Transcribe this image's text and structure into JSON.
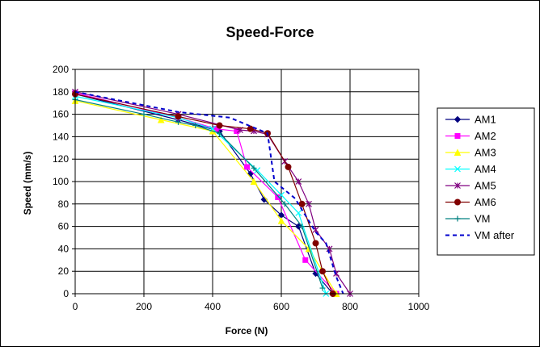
{
  "chart_data": {
    "type": "line",
    "title": "Speed-Force",
    "xlabel": "Force (N)",
    "ylabel": "Speed (mm/s)",
    "xlim": [
      0,
      1000
    ],
    "ylim": [
      0,
      200
    ],
    "xticks": [
      0,
      200,
      400,
      600,
      800,
      1000
    ],
    "yticks": [
      0,
      20,
      40,
      60,
      80,
      100,
      120,
      140,
      160,
      180,
      200
    ],
    "grid": true,
    "legend_position": "right",
    "series": [
      {
        "name": "AM1",
        "color": "#000080",
        "marker": "diamond",
        "dash": "solid",
        "x": [
          0,
          300,
          420,
          510,
          550,
          600,
          650,
          700,
          750
        ],
        "y": [
          178,
          155,
          145,
          107,
          84,
          70,
          60,
          18,
          0
        ]
      },
      {
        "name": "AM2",
        "color": "#ff00ff",
        "marker": "square",
        "dash": "solid",
        "x": [
          0,
          300,
          410,
          470,
          500,
          590,
          670,
          760
        ],
        "y": [
          179,
          157,
          147,
          145,
          113,
          86,
          30,
          0
        ]
      },
      {
        "name": "AM3",
        "color": "#ffff00",
        "marker": "triangle",
        "dash": "solid",
        "x": [
          0,
          250,
          400,
          520,
          600,
          680,
          760
        ],
        "y": [
          172,
          155,
          145,
          100,
          65,
          40,
          0
        ]
      },
      {
        "name": "AM4",
        "color": "#00ffff",
        "marker": "x",
        "dash": "solid",
        "x": [
          0,
          300,
          400,
          530,
          600,
          650,
          730
        ],
        "y": [
          176,
          157,
          147,
          110,
          88,
          72,
          0
        ]
      },
      {
        "name": "AM5",
        "color": "#800080",
        "marker": "star",
        "dash": "solid",
        "x": [
          0,
          300,
          480,
          520,
          560,
          610,
          650,
          680,
          700,
          740,
          760,
          800
        ],
        "y": [
          180,
          160,
          146,
          145,
          142,
          118,
          100,
          80,
          57,
          40,
          18,
          0
        ]
      },
      {
        "name": "AM6",
        "color": "#800000",
        "marker": "circle",
        "dash": "solid",
        "x": [
          0,
          300,
          420,
          510,
          560,
          620,
          660,
          700,
          720,
          750
        ],
        "y": [
          178,
          158,
          150,
          147,
          143,
          113,
          80,
          45,
          20,
          0
        ]
      },
      {
        "name": "VM",
        "color": "#008080",
        "marker": "plus",
        "dash": "solid",
        "x": [
          0,
          200,
          300,
          350,
          420,
          520,
          610,
          660,
          720
        ],
        "y": [
          173,
          160,
          153,
          150,
          143,
          112,
          80,
          60,
          5
        ]
      },
      {
        "name": "VM after",
        "color": "#0000cc",
        "marker": "none",
        "dash": "dashed",
        "x": [
          0,
          300,
          450,
          560,
          580,
          640,
          700,
          730,
          760,
          780
        ],
        "y": [
          180,
          162,
          157,
          143,
          100,
          85,
          55,
          45,
          15,
          0
        ]
      }
    ]
  }
}
